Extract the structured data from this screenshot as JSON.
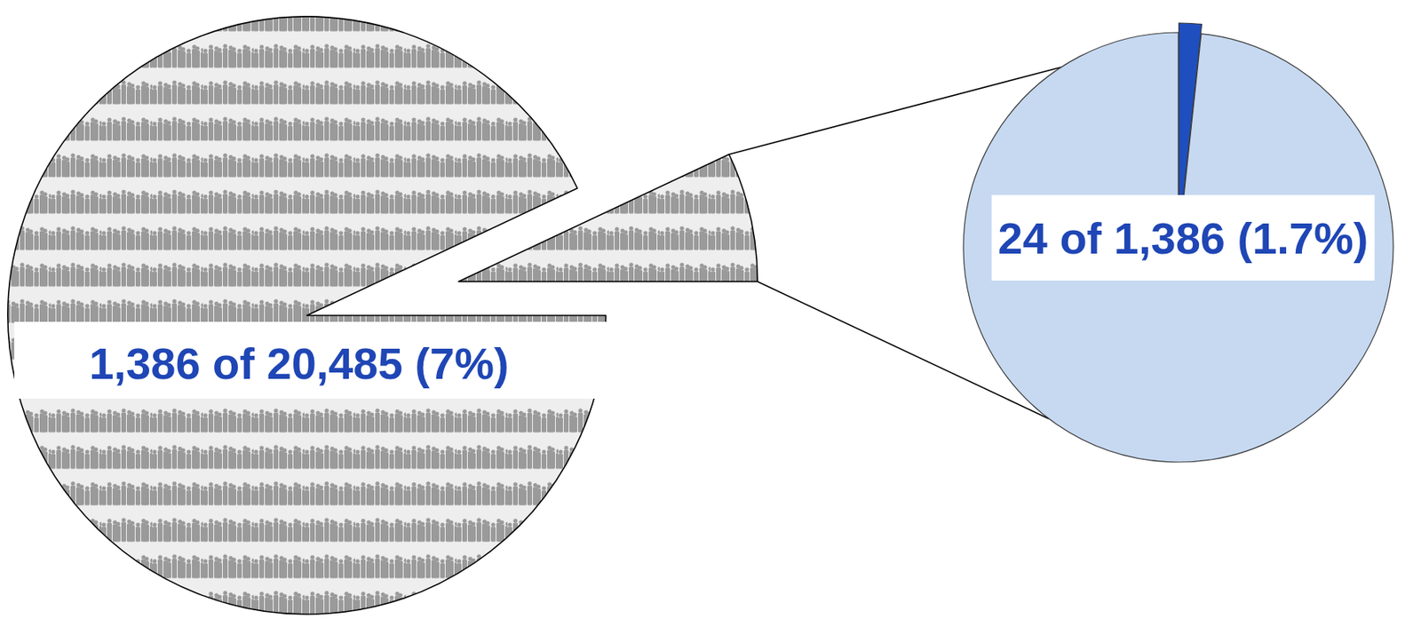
{
  "chart_data": [
    {
      "type": "pie",
      "annotation": "1,386 of 20,485 (7%)",
      "values": [
        7,
        93
      ],
      "colors": [
        "#9a9a9a",
        "#9a9a9a"
      ]
    },
    {
      "type": "pie",
      "annotation": "24 of 1,386 (1.7%)",
      "values": [
        1.7,
        98.3
      ],
      "colors": [
        "#1f4fbf",
        "#c6d9f1"
      ]
    }
  ]
}
